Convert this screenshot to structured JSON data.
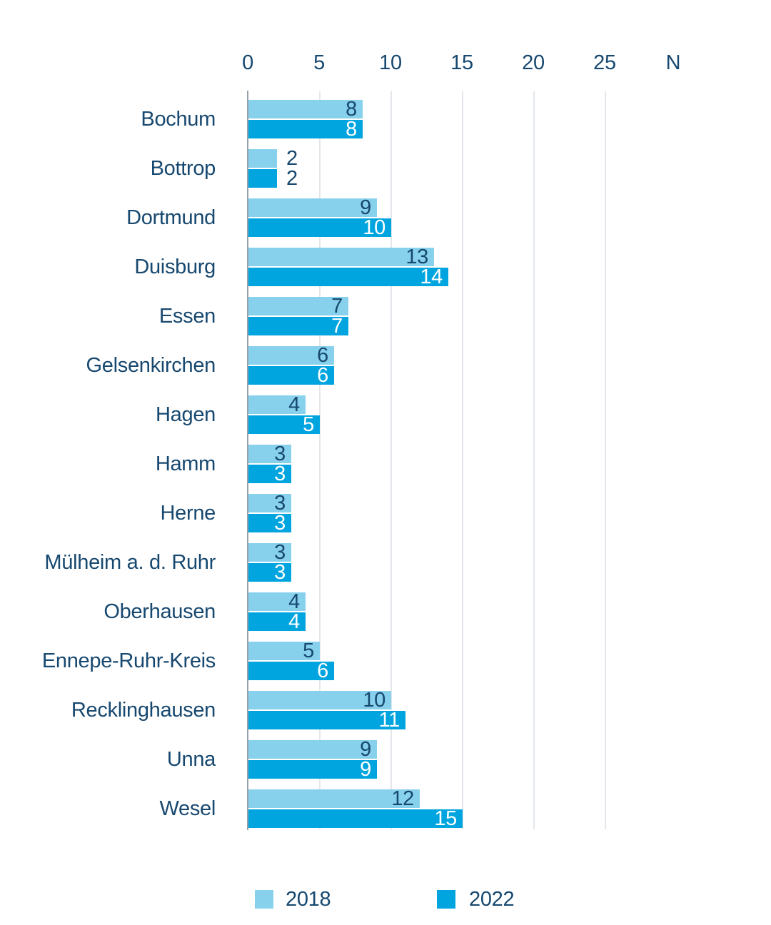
{
  "chart_data": {
    "type": "bar",
    "orientation": "horizontal",
    "title": "",
    "categories": [
      "Bochum",
      "Bottrop",
      "Dortmund",
      "Duisburg",
      "Essen",
      "Gelsenkirchen",
      "Hagen",
      "Hamm",
      "Herne",
      "Mülheim a. d. Ruhr",
      "Oberhausen",
      "Ennepe-Ruhr-Kreis",
      "Recklinghausen",
      "Unna",
      "Wesel"
    ],
    "series": [
      {
        "name": "2018",
        "color": "#87D1ED",
        "label_color": "#17486F",
        "values": [
          8,
          2,
          9,
          13,
          7,
          6,
          4,
          3,
          3,
          3,
          4,
          5,
          10,
          9,
          12
        ]
      },
      {
        "name": "2022",
        "color": "#00A4DE",
        "label_color": "#FFFFFF",
        "values": [
          8,
          2,
          10,
          14,
          7,
          6,
          5,
          3,
          3,
          3,
          4,
          6,
          11,
          9,
          15
        ]
      }
    ],
    "x_axis": {
      "ticks": [
        0,
        5,
        10,
        15,
        20,
        25
      ],
      "extra_label": "N",
      "range": [
        0,
        30
      ],
      "grid": true
    },
    "legend": {
      "position": "bottom",
      "labels": [
        "2018",
        "2022"
      ]
    }
  },
  "colors": {
    "text_navy": "#17486F",
    "axis_line": "#99A1A8",
    "gridline": "#E3E7EB",
    "background": "#FFFFFF",
    "bar_2018": "#87D1ED",
    "bar_2022": "#00A4DE"
  }
}
